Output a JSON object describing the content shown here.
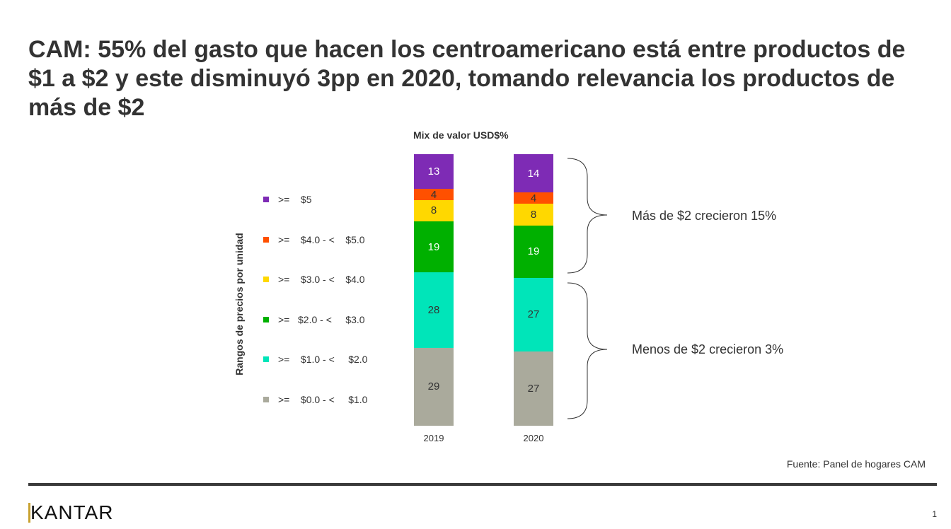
{
  "title": "CAM: 55% del gasto que hacen los centroamericano está entre productos de $1 a $2 y este disminuyó 3pp en 2020, tomando relevancia los productos de más de $2",
  "chart_data": {
    "type": "bar",
    "stacked": true,
    "title": "Mix de valor USD$%",
    "ylabel": "Rangos de precios por unidad",
    "categories": [
      "2019",
      "2020"
    ],
    "series": [
      {
        "name": ">=    $0.0 - <     $1.0",
        "color": "#aaaa9c",
        "text_color": "#333333",
        "values": [
          29,
          27
        ]
      },
      {
        "name": ">=    $1.0 - <     $2.0",
        "color": "#00e5b9",
        "text_color": "#333333",
        "values": [
          28,
          27
        ]
      },
      {
        "name": ">=   $2.0 - <     $3.0",
        "color": "#00b000",
        "text_color": "#ffffff",
        "values": [
          19,
          19
        ]
      },
      {
        "name": ">=    $3.0 - <    $4.0",
        "color": "#ffd800",
        "text_color": "#333333",
        "values": [
          8,
          8
        ]
      },
      {
        "name": ">=    $4.0 - <    $5.0",
        "color": "#ff5000",
        "text_color": "#333333",
        "values": [
          4,
          4
        ]
      },
      {
        "name": ">=    $5",
        "color": "#7e2bb5",
        "text_color": "#ffffff",
        "values": [
          13,
          14
        ]
      }
    ],
    "annotations": [
      "Más de $2 crecieron 15%",
      "Menos de $2 crecieron 3%"
    ]
  },
  "source": "Fuente: Panel de hogares CAM",
  "logo": "KANTAR",
  "page_number": "1"
}
